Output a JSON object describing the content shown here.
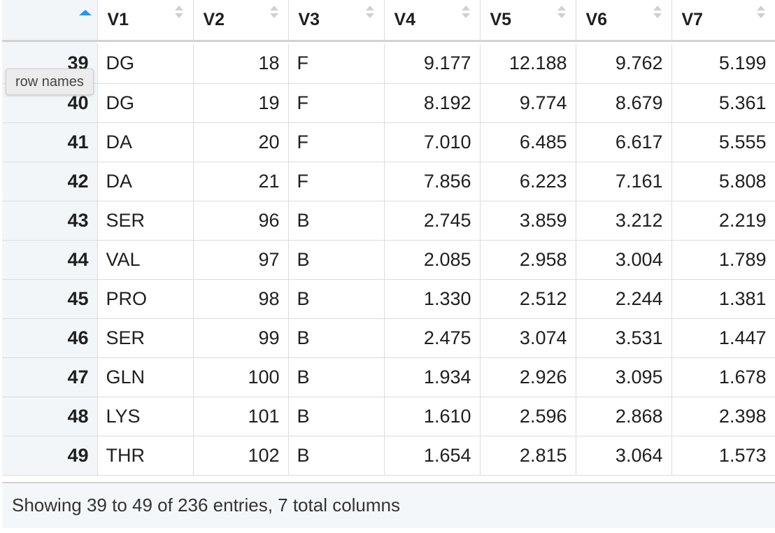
{
  "table": {
    "columns": [
      "V1",
      "V2",
      "V3",
      "V4",
      "V5",
      "V6",
      "V7"
    ],
    "numeric_columns": [
      false,
      true,
      false,
      true,
      true,
      true,
      true
    ],
    "rows": [
      {
        "rowname": "39",
        "cells": [
          "DG",
          "18",
          "F",
          "9.177",
          "12.188",
          "9.762",
          "5.199"
        ]
      },
      {
        "rowname": "40",
        "cells": [
          "DG",
          "19",
          "F",
          "8.192",
          "9.774",
          "8.679",
          "5.361"
        ]
      },
      {
        "rowname": "41",
        "cells": [
          "DA",
          "20",
          "F",
          "7.010",
          "6.485",
          "6.617",
          "5.555"
        ]
      },
      {
        "rowname": "42",
        "cells": [
          "DA",
          "21",
          "F",
          "7.856",
          "6.223",
          "7.161",
          "5.808"
        ]
      },
      {
        "rowname": "43",
        "cells": [
          "SER",
          "96",
          "B",
          "2.745",
          "3.859",
          "3.212",
          "2.219"
        ]
      },
      {
        "rowname": "44",
        "cells": [
          "VAL",
          "97",
          "B",
          "2.085",
          "2.958",
          "3.004",
          "1.789"
        ]
      },
      {
        "rowname": "45",
        "cells": [
          "PRO",
          "98",
          "B",
          "1.330",
          "2.512",
          "2.244",
          "1.381"
        ]
      },
      {
        "rowname": "46",
        "cells": [
          "SER",
          "99",
          "B",
          "2.475",
          "3.074",
          "3.531",
          "1.447"
        ]
      },
      {
        "rowname": "47",
        "cells": [
          "GLN",
          "100",
          "B",
          "1.934",
          "2.926",
          "3.095",
          "1.678"
        ]
      },
      {
        "rowname": "48",
        "cells": [
          "LYS",
          "101",
          "B",
          "1.610",
          "2.596",
          "2.868",
          "2.398"
        ]
      },
      {
        "rowname": "49",
        "cells": [
          "THR",
          "102",
          "B",
          "1.654",
          "2.815",
          "3.064",
          "1.573"
        ]
      }
    ],
    "sort": {
      "column": "row names",
      "direction": "ascending",
      "icon": "sort-ascending-icon",
      "color": "#2196f3"
    }
  },
  "tooltip": {
    "text": "row names"
  },
  "footer": {
    "text": "Showing 39 to 49 of 236 entries, 7 total columns"
  }
}
